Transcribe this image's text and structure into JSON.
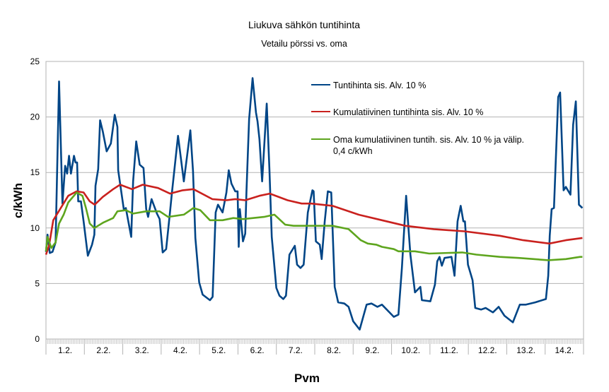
{
  "chart_data": {
    "type": "line",
    "title": "Liukuva sähkön tuntihinta",
    "subtitle": "Vetailu pörssi vs. oma",
    "xlabel": "Pvm",
    "ylabel": "c/kWh",
    "ylim": [
      0,
      25
    ],
    "yticks": [
      "0",
      "5",
      "10",
      "15",
      "20",
      "25"
    ],
    "xlim": [
      1,
      15
    ],
    "xticks": [
      "1.2.",
      "2.2.",
      "3.2.",
      "4.2.",
      "5.2.",
      "6.2.",
      "7.2.",
      "8.2.",
      "9.2.",
      "10.2.",
      "11.2.",
      "12.2.",
      "13.2.",
      "14.2."
    ],
    "grid": "horizontal",
    "legend_position": "top-right",
    "series": [
      {
        "name": "Tuntihinta sis. Alv. 10 %",
        "color": "#004586",
        "points": [
          [
            1.0,
            7.85
          ],
          [
            1.04,
            9.4
          ],
          [
            1.1,
            7.75
          ],
          [
            1.17,
            7.85
          ],
          [
            1.25,
            8.7
          ],
          [
            1.34,
            23.2
          ],
          [
            1.43,
            12.2
          ],
          [
            1.5,
            15.6
          ],
          [
            1.55,
            14.9
          ],
          [
            1.6,
            16.5
          ],
          [
            1.65,
            14.9
          ],
          [
            1.73,
            16.5
          ],
          [
            1.77,
            15.9
          ],
          [
            1.81,
            15.9
          ],
          [
            1.84,
            12.4
          ],
          [
            1.91,
            12.4
          ],
          [
            1.98,
            10.6
          ],
          [
            2.09,
            7.5
          ],
          [
            2.2,
            8.5
          ],
          [
            2.26,
            9.4
          ],
          [
            2.29,
            13.8
          ],
          [
            2.36,
            15.3
          ],
          [
            2.41,
            19.7
          ],
          [
            2.48,
            18.7
          ],
          [
            2.58,
            16.9
          ],
          [
            2.69,
            17.6
          ],
          [
            2.79,
            20.2
          ],
          [
            2.86,
            19.1
          ],
          [
            2.88,
            15.2
          ],
          [
            3.03,
            11.6
          ],
          [
            3.08,
            11.8
          ],
          [
            3.22,
            9.2
          ],
          [
            3.27,
            14.2
          ],
          [
            3.35,
            17.8
          ],
          [
            3.44,
            15.7
          ],
          [
            3.54,
            15.4
          ],
          [
            3.61,
            11.7
          ],
          [
            3.66,
            11.0
          ],
          [
            3.75,
            12.6
          ],
          [
            3.89,
            11.3
          ],
          [
            3.96,
            10.8
          ],
          [
            4.04,
            7.8
          ],
          [
            4.13,
            8.1
          ],
          [
            4.23,
            11.4
          ],
          [
            4.28,
            13.2
          ],
          [
            4.44,
            18.3
          ],
          [
            4.59,
            14.2
          ],
          [
            4.76,
            18.8
          ],
          [
            4.83,
            15.1
          ],
          [
            4.89,
            9.1
          ],
          [
            4.99,
            5.1
          ],
          [
            5.08,
            4.0
          ],
          [
            5.27,
            3.5
          ],
          [
            5.34,
            3.8
          ],
          [
            5.42,
            11.4
          ],
          [
            5.48,
            12.1
          ],
          [
            5.6,
            11.4
          ],
          [
            5.7,
            13.2
          ],
          [
            5.76,
            15.2
          ],
          [
            5.83,
            14.0
          ],
          [
            5.93,
            13.3
          ],
          [
            5.99,
            13.3
          ],
          [
            6.02,
            8.3
          ],
          [
            6.05,
            11.7
          ],
          [
            6.13,
            8.8
          ],
          [
            6.19,
            9.5
          ],
          [
            6.22,
            13.2
          ],
          [
            6.29,
            19.8
          ],
          [
            6.38,
            23.5
          ],
          [
            6.47,
            20.4
          ],
          [
            6.51,
            19.6
          ],
          [
            6.56,
            18.0
          ],
          [
            6.63,
            14.2
          ],
          [
            6.75,
            21.2
          ],
          [
            6.82,
            15.3
          ],
          [
            6.88,
            9.2
          ],
          [
            7.0,
            4.6
          ],
          [
            7.08,
            3.9
          ],
          [
            7.18,
            3.6
          ],
          [
            7.25,
            3.9
          ],
          [
            7.34,
            7.6
          ],
          [
            7.48,
            8.4
          ],
          [
            7.54,
            6.7
          ],
          [
            7.63,
            6.4
          ],
          [
            7.71,
            6.7
          ],
          [
            7.82,
            11.4
          ],
          [
            7.94,
            13.4
          ],
          [
            7.97,
            13.3
          ],
          [
            8.03,
            8.8
          ],
          [
            8.13,
            8.5
          ],
          [
            8.18,
            7.2
          ],
          [
            8.26,
            10.6
          ],
          [
            8.34,
            13.3
          ],
          [
            8.43,
            13.2
          ],
          [
            8.52,
            4.7
          ],
          [
            8.61,
            3.3
          ],
          [
            8.77,
            3.2
          ],
          [
            8.88,
            2.9
          ],
          [
            9.0,
            1.6
          ],
          [
            9.17,
            0.85
          ],
          [
            9.35,
            3.1
          ],
          [
            9.48,
            3.2
          ],
          [
            9.63,
            2.9
          ],
          [
            9.75,
            3.1
          ],
          [
            10.06,
            2.0
          ],
          [
            10.18,
            2.2
          ],
          [
            10.27,
            6.4
          ],
          [
            10.38,
            12.9
          ],
          [
            10.49,
            7.6
          ],
          [
            10.61,
            4.2
          ],
          [
            10.75,
            4.7
          ],
          [
            10.79,
            3.5
          ],
          [
            11.01,
            3.4
          ],
          [
            11.13,
            4.9
          ],
          [
            11.19,
            7.0
          ],
          [
            11.25,
            7.4
          ],
          [
            11.31,
            6.6
          ],
          [
            11.38,
            7.3
          ],
          [
            11.56,
            7.4
          ],
          [
            11.64,
            5.7
          ],
          [
            11.72,
            10.6
          ],
          [
            11.8,
            12.0
          ],
          [
            11.87,
            10.6
          ],
          [
            11.91,
            10.6
          ],
          [
            11.99,
            6.7
          ],
          [
            12.11,
            5.3
          ],
          [
            12.18,
            2.8
          ],
          [
            12.33,
            2.65
          ],
          [
            12.45,
            2.8
          ],
          [
            12.64,
            2.4
          ],
          [
            12.79,
            2.9
          ],
          [
            12.94,
            2.1
          ],
          [
            13.16,
            1.5
          ],
          [
            13.34,
            3.1
          ],
          [
            13.5,
            3.1
          ],
          [
            13.74,
            3.3
          ],
          [
            14.02,
            3.6
          ],
          [
            14.08,
            5.7
          ],
          [
            14.12,
            9.3
          ],
          [
            14.17,
            11.7
          ],
          [
            14.23,
            11.8
          ],
          [
            14.34,
            21.8
          ],
          [
            14.39,
            22.2
          ],
          [
            14.48,
            13.4
          ],
          [
            14.54,
            13.7
          ],
          [
            14.66,
            13.0
          ],
          [
            14.73,
            19.3
          ],
          [
            14.8,
            21.4
          ],
          [
            14.88,
            12.1
          ],
          [
            14.97,
            11.8
          ]
        ]
      },
      {
        "name": "Kumulatiivinen tuntihinta sis. Alv. 10 %",
        "color": "#c9211e",
        "points": [
          [
            1.0,
            7.6
          ],
          [
            1.08,
            8.4
          ],
          [
            1.19,
            10.7
          ],
          [
            1.58,
            12.9
          ],
          [
            1.8,
            13.3
          ],
          [
            1.98,
            13.2
          ],
          [
            2.14,
            12.4
          ],
          [
            2.27,
            12.1
          ],
          [
            2.48,
            12.8
          ],
          [
            2.75,
            13.5
          ],
          [
            2.93,
            13.9
          ],
          [
            3.24,
            13.5
          ],
          [
            3.52,
            13.9
          ],
          [
            3.92,
            13.6
          ],
          [
            4.23,
            13.1
          ],
          [
            4.56,
            13.4
          ],
          [
            4.84,
            13.5
          ],
          [
            5.33,
            12.6
          ],
          [
            5.7,
            12.5
          ],
          [
            5.93,
            12.6
          ],
          [
            6.19,
            12.5
          ],
          [
            6.56,
            12.9
          ],
          [
            6.83,
            13.1
          ],
          [
            7.29,
            12.5
          ],
          [
            7.66,
            12.2
          ],
          [
            7.91,
            12.2
          ],
          [
            8.46,
            12.0
          ],
          [
            9.14,
            11.2
          ],
          [
            9.75,
            10.7
          ],
          [
            10.36,
            10.2
          ],
          [
            11.1,
            9.9
          ],
          [
            11.9,
            9.7
          ],
          [
            12.82,
            9.3
          ],
          [
            13.43,
            8.9
          ],
          [
            14.11,
            8.6
          ],
          [
            14.54,
            8.9
          ],
          [
            14.97,
            9.1
          ]
        ]
      },
      {
        "name": "Oma kumulatiivinen tuntih. sis. Alv. 10 % ja välip.",
        "name_line2": "0,4 c/kWh",
        "color": "#5ea51e",
        "points": [
          [
            1.0,
            7.9
          ],
          [
            1.04,
            9.2
          ],
          [
            1.14,
            8.2
          ],
          [
            1.25,
            8.7
          ],
          [
            1.34,
            10.4
          ],
          [
            1.46,
            11.2
          ],
          [
            1.58,
            12.3
          ],
          [
            1.8,
            13.2
          ],
          [
            1.95,
            12.9
          ],
          [
            2.04,
            11.8
          ],
          [
            2.14,
            10.4
          ],
          [
            2.26,
            10.0
          ],
          [
            2.5,
            10.5
          ],
          [
            2.75,
            10.9
          ],
          [
            2.86,
            11.5
          ],
          [
            3.08,
            11.6
          ],
          [
            3.27,
            11.3
          ],
          [
            3.61,
            11.5
          ],
          [
            3.96,
            11.5
          ],
          [
            4.18,
            11.0
          ],
          [
            4.59,
            11.2
          ],
          [
            4.84,
            11.8
          ],
          [
            5.02,
            11.6
          ],
          [
            5.27,
            10.7
          ],
          [
            5.6,
            10.7
          ],
          [
            5.88,
            10.9
          ],
          [
            6.13,
            10.8
          ],
          [
            6.68,
            11.0
          ],
          [
            6.95,
            11.2
          ],
          [
            7.23,
            10.3
          ],
          [
            7.45,
            10.2
          ],
          [
            8.46,
            10.2
          ],
          [
            8.88,
            9.9
          ],
          [
            9.2,
            8.9
          ],
          [
            9.38,
            8.6
          ],
          [
            9.6,
            8.5
          ],
          [
            9.75,
            8.3
          ],
          [
            10.06,
            8.1
          ],
          [
            10.18,
            7.9
          ],
          [
            10.61,
            7.9
          ],
          [
            10.98,
            7.7
          ],
          [
            11.84,
            7.8
          ],
          [
            12.21,
            7.6
          ],
          [
            12.82,
            7.4
          ],
          [
            13.31,
            7.3
          ],
          [
            14.08,
            7.1
          ],
          [
            14.54,
            7.2
          ],
          [
            14.91,
            7.4
          ],
          [
            14.97,
            7.4
          ]
        ]
      }
    ]
  }
}
